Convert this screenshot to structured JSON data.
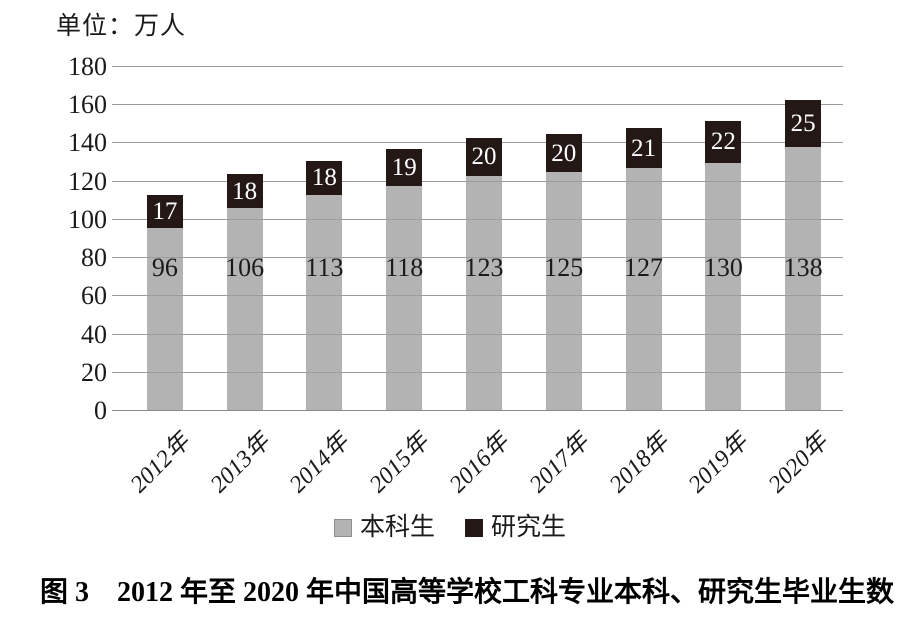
{
  "chart_data": {
    "type": "bar",
    "stacked": true,
    "unit_label": "单位：万人",
    "categories": [
      "2012年",
      "2013年",
      "2014年",
      "2015年",
      "2016年",
      "2017年",
      "2018年",
      "2019年",
      "2020年"
    ],
    "series": [
      {
        "id": "undergraduates",
        "name": "本科生",
        "color": "#b3b3b3",
        "label_color": "#1a1a1a",
        "values": [
          96,
          106,
          113,
          118,
          123,
          125,
          127,
          130,
          138
        ]
      },
      {
        "id": "graduates",
        "name": "研究生",
        "color": "#231815",
        "label_color": "#ffffff",
        "values": [
          17,
          18,
          18,
          19,
          20,
          20,
          21,
          22,
          25
        ]
      }
    ],
    "ylim": [
      0,
      180
    ],
    "ytick_step": 20,
    "yticks": [
      0,
      20,
      40,
      60,
      80,
      100,
      120,
      140,
      160,
      180
    ],
    "grid": true,
    "gridline_color": "#9c9c9c",
    "legend_position": "bottom",
    "caption": "图 3　2012 年至 2020 年中国高等学校工科专业本科、研究生毕业生数"
  }
}
